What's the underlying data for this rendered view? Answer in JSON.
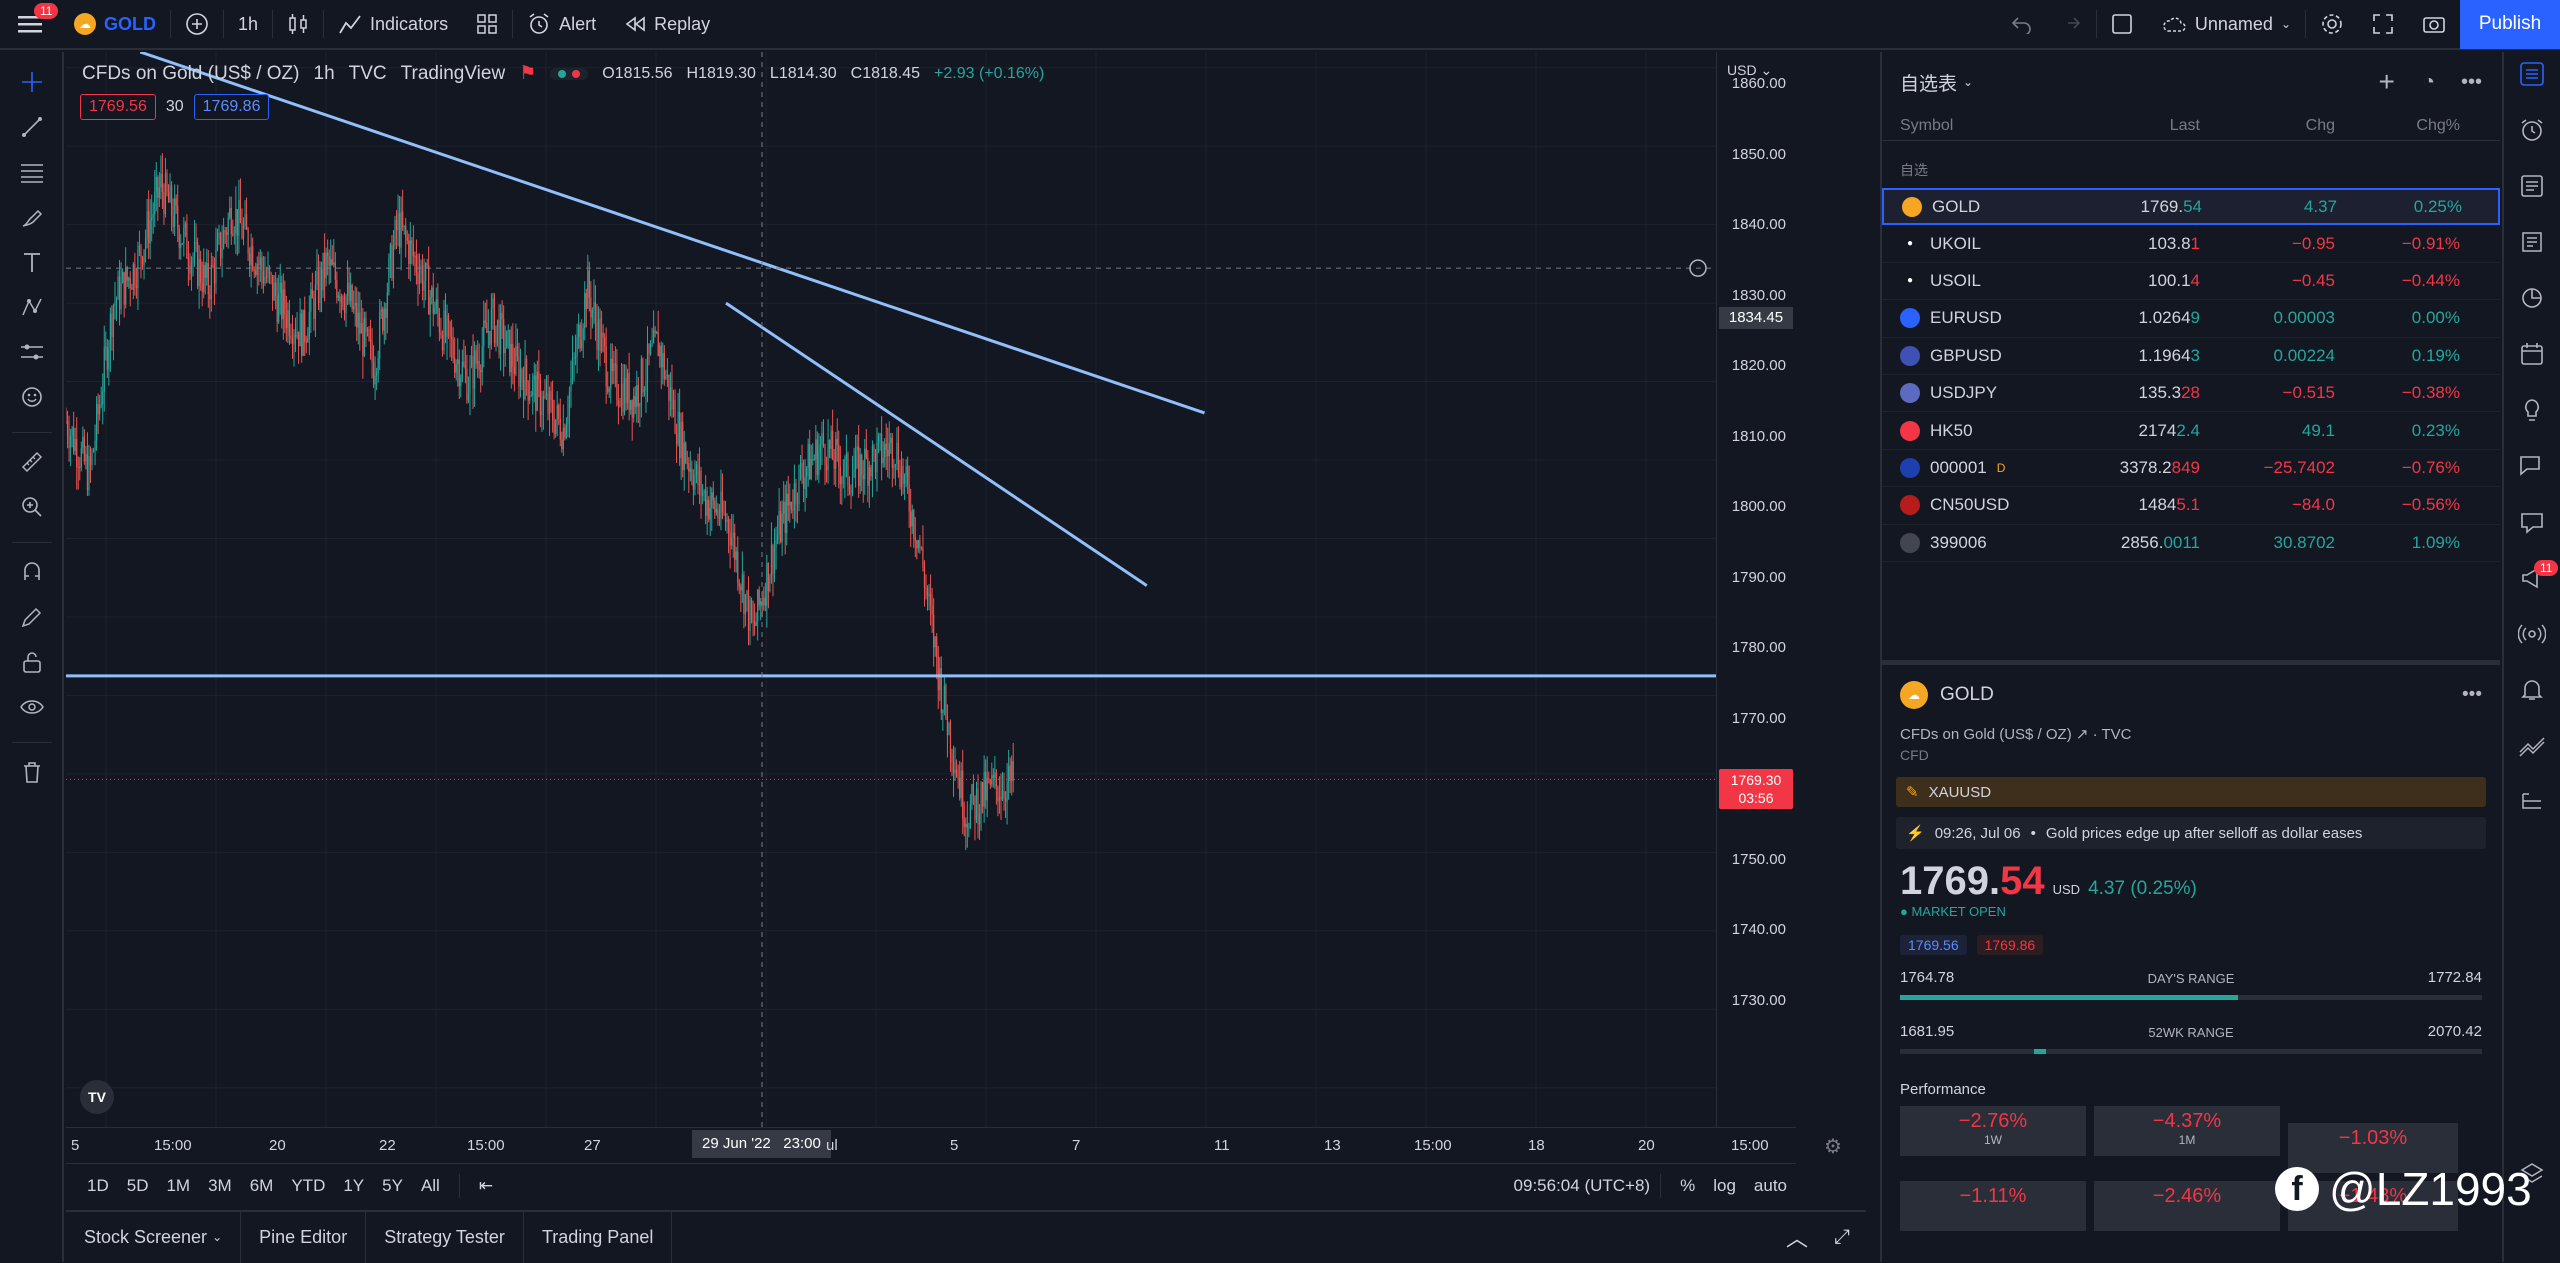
{
  "topbar": {
    "menu_badge": "11",
    "symbol": "GOLD",
    "interval": "1h",
    "indicators": "Indicators",
    "alert": "Alert",
    "replay": "Replay",
    "layout_name": "Unnamed",
    "publish": "Publish"
  },
  "legend": {
    "title": "CFDs on Gold (US$ / OZ)",
    "interval": "1h",
    "exchange": "TVC",
    "source": "TradingView",
    "open": "O1815.56",
    "high": "H1819.30",
    "low": "L1814.30",
    "close": "C1818.45",
    "change": "+2.93 (+0.16%)",
    "bid": "1769.56",
    "spread": "30",
    "ask": "1769.86"
  },
  "price_scale": {
    "currency": "USD",
    "labels": [
      "1860.00",
      "1850.00",
      "1840.00",
      "1830.00",
      "1820.00",
      "1810.00",
      "1800.00",
      "1790.00",
      "1780.00",
      "1770.00",
      "1760.00",
      "1750.00",
      "1740.00",
      "1730.00"
    ],
    "crosshair_price": "1834.45",
    "current_price": "1769.30",
    "countdown": "03:56"
  },
  "time_scale": {
    "labels": [
      "5",
      "15:00",
      "20",
      "22",
      "15:00",
      "27",
      "5",
      "7",
      "11",
      "13",
      "15:00",
      "18",
      "20",
      "15:00"
    ],
    "crosshair_time": "29 Jun '22",
    "crosshair_hour": "23:00",
    "partial": "ul"
  },
  "range_bar": {
    "ranges": [
      "1D",
      "5D",
      "1M",
      "3M",
      "6M",
      "YTD",
      "1Y",
      "5Y",
      "All"
    ],
    "clock": "09:56:04 (UTC+8)",
    "percent": "%",
    "log": "log",
    "auto": "auto"
  },
  "bottom_tabs": [
    "Stock Screener",
    "Pine Editor",
    "Strategy Tester",
    "Trading Panel"
  ],
  "watchlist": {
    "title": "自选表",
    "columns": {
      "symbol": "Symbol",
      "last": "Last",
      "chg": "Chg",
      "chgp": "Chg%"
    },
    "section": "自选",
    "rows": [
      {
        "symbol": "GOLD",
        "last_a": "1769.",
        "last_b": "54",
        "chg": "4.37",
        "chgp": "0.25%",
        "dir": "pos",
        "icon": "#f5a623"
      },
      {
        "symbol": "UKOIL",
        "last_a": "103.8",
        "last_b": "1",
        "chg": "−0.95",
        "chgp": "−0.91%",
        "dir": "neg",
        "icon": "#131722"
      },
      {
        "symbol": "USOIL",
        "last_a": "100.1",
        "last_b": "4",
        "chg": "−0.45",
        "chgp": "−0.44%",
        "dir": "neg",
        "icon": "#131722"
      },
      {
        "symbol": "EURUSD",
        "last_a": "1.0264",
        "last_b": "9",
        "chg": "0.00003",
        "chgp": "0.00%",
        "dir": "pos",
        "icon": "#2962ff"
      },
      {
        "symbol": "GBPUSD",
        "last_a": "1.1964",
        "last_b": "3",
        "chg": "0.00224",
        "chgp": "0.19%",
        "dir": "pos",
        "icon": "#3f51b5"
      },
      {
        "symbol": "USDJPY",
        "last_a": "135.3",
        "last_b": "28",
        "chg": "−0.515",
        "chgp": "−0.38%",
        "dir": "neg",
        "icon": "#5c6bc0"
      },
      {
        "symbol": "HK50",
        "last_a": "2174",
        "last_b": "2.4",
        "chg": "49.1",
        "chgp": "0.23%",
        "dir": "pos",
        "icon": "#f23645"
      },
      {
        "symbol": "000001",
        "last_a": "3378.2",
        "last_b": "849",
        "chg": "−25.7402",
        "chgp": "−0.76%",
        "dir": "neg",
        "icon": "#1e40af",
        "flag": "D"
      },
      {
        "symbol": "CN50USD",
        "last_a": "1484",
        "last_b": "5.1",
        "chg": "−84.0",
        "chgp": "−0.56%",
        "dir": "neg",
        "icon": "#b71c1c"
      },
      {
        "symbol": "399006",
        "last_a": "2856.",
        "last_b": "0011",
        "chg": "30.8702",
        "chgp": "1.09%",
        "dir": "pos",
        "icon": "#434651"
      }
    ]
  },
  "details": {
    "symbol": "GOLD",
    "desc": "CFDs on Gold (US$ / OZ)",
    "exchange": "TVC",
    "type": "CFD",
    "related": "XAUUSD",
    "news_time": "09:26, Jul 06",
    "news": "Gold prices edge up after selloff as dollar eases",
    "price_a": "1769.",
    "price_b": "54",
    "currency": "USD",
    "change": "4.37 (0.25%)",
    "status": "MARKET OPEN",
    "bid": "1769.56",
    "ask": "1769.86",
    "day_low": "1764.78",
    "day_label": "DAY'S RANGE",
    "day_high": "1772.84",
    "day_fill": 0.58,
    "wk_low": "1681.95",
    "wk_label": "52WK RANGE",
    "wk_high": "2070.42",
    "wk_fill": 0.23,
    "perf_title": "Performance",
    "perf": [
      {
        "v": "−2.76%",
        "l": "1W"
      },
      {
        "v": "−4.37%",
        "l": "1M"
      },
      {
        "v": "−1.03%",
        "l": ""
      },
      {
        "v": "−1.11%",
        "l": ""
      },
      {
        "v": "−2.46%",
        "l": ""
      },
      {
        "v": "−1.48%",
        "l": ""
      }
    ]
  },
  "rightbar_badge": "11",
  "watermark": "@LZ1993",
  "chart_data": {
    "type": "candlestick",
    "title": "CFDs on Gold (US$ / OZ)",
    "ylim": [
      1725,
      1862
    ],
    "approx_close_path": [
      1815,
      1808,
      1830,
      1835,
      1845,
      1838,
      1832,
      1842,
      1836,
      1830,
      1826,
      1835,
      1830,
      1822,
      1840,
      1834,
      1826,
      1820,
      1828,
      1822,
      1818,
      1814,
      1832,
      1820,
      1818,
      1825,
      1812,
      1805,
      1802,
      1788,
      1800,
      1808,
      1812,
      1808,
      1810,
      1812,
      1800,
      1780,
      1765,
      1768,
      1769
    ],
    "trendlines": [
      {
        "from": [
          0.045,
          1862
        ],
        "to": [
          0.69,
          1816
        ]
      },
      {
        "from": [
          0.4,
          1830
        ],
        "to": [
          0.655,
          1794
        ]
      }
    ],
    "hline": 1782.5
  }
}
